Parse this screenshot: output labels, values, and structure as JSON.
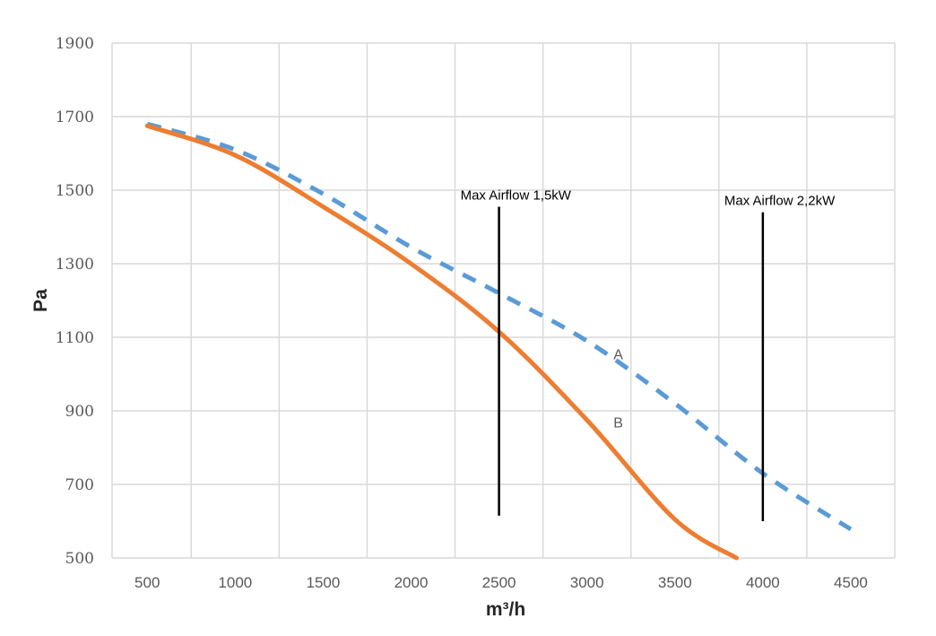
{
  "chart_data": {
    "type": "line",
    "xlabel": "m³/h",
    "ylabel": "Pa",
    "xlim": [
      300,
      4750
    ],
    "ylim": [
      500,
      1900
    ],
    "x_ticks": [
      500,
      1000,
      1500,
      2000,
      2500,
      3000,
      3500,
      4000,
      4500
    ],
    "y_ticks": [
      500,
      700,
      900,
      1100,
      1300,
      1500,
      1700,
      1900
    ],
    "grid": true,
    "series": [
      {
        "name": "A",
        "color": "#5B9BD5",
        "style": "dashed",
        "label_at": [
          3100,
          1040
        ],
        "points": [
          [
            500,
            1680
          ],
          [
            1000,
            1610
          ],
          [
            1500,
            1490
          ],
          [
            2000,
            1345
          ],
          [
            2500,
            1220
          ],
          [
            3000,
            1090
          ],
          [
            3500,
            920
          ],
          [
            4000,
            730
          ],
          [
            4500,
            578
          ]
        ]
      },
      {
        "name": "B",
        "color": "#ED7D31",
        "style": "solid",
        "label_at": [
          3100,
          855
        ],
        "points": [
          [
            500,
            1675
          ],
          [
            1000,
            1595
          ],
          [
            1500,
            1455
          ],
          [
            2000,
            1300
          ],
          [
            2500,
            1115
          ],
          [
            3000,
            875
          ],
          [
            3500,
            605
          ],
          [
            3850,
            500
          ]
        ]
      }
    ],
    "annotations": [
      {
        "text": "Max Airflow 1,5kW",
        "x": 2500,
        "y_from": 615,
        "y_to": 1455
      },
      {
        "text": "Max Airflow 2,2kW",
        "x": 4000,
        "y_from": 600,
        "y_to": 1440
      }
    ]
  }
}
